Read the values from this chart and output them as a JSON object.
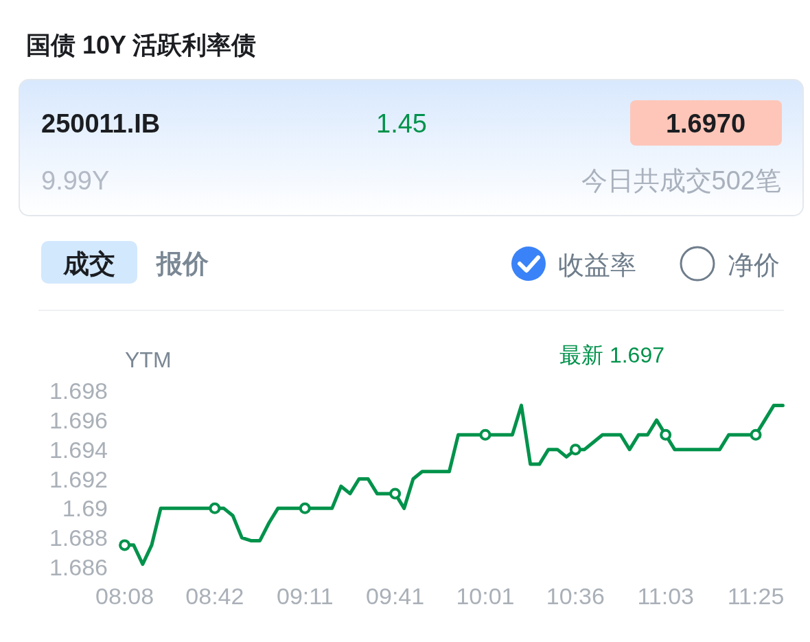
{
  "chart_data": {
    "type": "line",
    "title": "国债 10Y 活跃利率债",
    "ylabel": "YTM",
    "annotations": [
      "250011.IB",
      "1.45",
      "1.6970",
      "9.99Y",
      "今日共成交502笔",
      "成交",
      "报价",
      "收益率",
      "净价",
      "最新 1.697"
    ],
    "categories": [
      "08:08",
      null,
      null,
      null,
      null,
      null,
      null,
      null,
      null,
      null,
      "08:42",
      null,
      null,
      null,
      null,
      null,
      null,
      null,
      null,
      null,
      "09:11",
      null,
      null,
      null,
      null,
      null,
      null,
      null,
      null,
      null,
      "09:41",
      null,
      null,
      null,
      null,
      null,
      null,
      null,
      null,
      null,
      "10:01",
      null,
      null,
      null,
      null,
      null,
      null,
      null,
      null,
      null,
      "10:36",
      null,
      null,
      null,
      null,
      null,
      null,
      null,
      null,
      null,
      "11:03",
      null,
      null,
      null,
      null,
      null,
      null,
      null,
      null,
      null,
      "11:25",
      null,
      null,
      null
    ],
    "series": [
      {
        "color": "#00924b",
        "values": [
          1.6875,
          1.6875,
          1.6862,
          1.6875,
          1.69,
          1.69,
          1.69,
          1.69,
          1.69,
          1.69,
          1.69,
          1.69,
          1.6895,
          1.688,
          1.6878,
          1.6878,
          1.689,
          1.69,
          1.69,
          1.69,
          1.69,
          1.69,
          1.69,
          1.69,
          1.6915,
          1.691,
          1.692,
          1.692,
          1.691,
          1.691,
          1.691,
          1.69,
          1.692,
          1.6925,
          1.6925,
          1.6925,
          1.6925,
          1.695,
          1.695,
          1.695,
          1.695,
          1.695,
          1.695,
          1.695,
          1.697,
          1.693,
          1.693,
          1.694,
          1.694,
          1.6935,
          1.694,
          1.694,
          1.6945,
          1.695,
          1.695,
          1.695,
          1.694,
          1.695,
          1.695,
          1.696,
          1.695,
          1.694,
          1.694,
          1.694,
          1.694,
          1.694,
          1.694,
          1.695,
          1.695,
          1.695,
          1.695,
          1.696,
          1.697,
          1.697
        ]
      },
      {
        "type": "scatter",
        "color": "#00924b",
        "marker": "circle",
        "x": [
          "08:08",
          "08:42",
          "09:11",
          "09:41",
          "10:01",
          "10:36",
          "11:03",
          "11:25"
        ],
        "values": [
          1.6875,
          1.69,
          1.69,
          1.691,
          1.695,
          1.694,
          1.695,
          1.695
        ]
      }
    ],
    "ylim": [
      1.686,
      1.698
    ],
    "yticks": [
      1.686,
      1.688,
      {
        "value": 1.69,
        "label": "1.69"
      },
      1.692,
      1.694,
      1.696,
      1.698
    ],
    "line_style": "solid",
    "grid": false
  }
}
